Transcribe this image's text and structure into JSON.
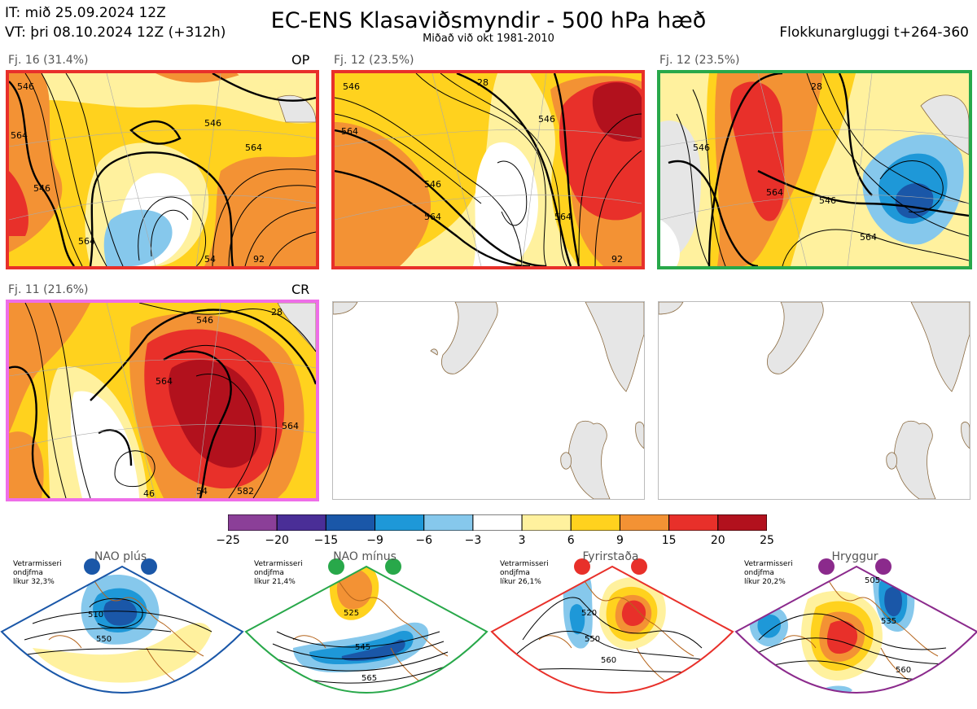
{
  "header": {
    "issue_time": "IT: mið 25.09.2024 12Z",
    "valid_time": "VT: þri 08.10.2024 12Z  (+312h)",
    "title": "EC-ENS Klasaviðsmyndir - 500 hPa hæð",
    "subtitle": "Miðað við okt 1981-2010",
    "window": "Flokkunargluggi t+264-360"
  },
  "panels": [
    {
      "label": "Fj. 16 (31.4%)",
      "tag": "OP",
      "border_color": "#e8302a",
      "contours": [
        "546",
        "564",
        "546",
        "564",
        "546",
        "564",
        "54",
        "92"
      ]
    },
    {
      "label": "Fj. 12 (23.5%)",
      "tag": "",
      "border_color": "#e8302a",
      "contours": [
        "546",
        "564",
        "546",
        "564",
        "546",
        "564",
        "92",
        "28"
      ]
    },
    {
      "label": "Fj. 12 (23.5%)",
      "tag": "",
      "border_color": "#28a84a",
      "contours": [
        "564",
        "546",
        "564",
        "28",
        "546"
      ]
    },
    {
      "label": "Fj. 11 (21.6%)",
      "tag": "CR",
      "border_color": "#ee6ee8",
      "contours": [
        "546",
        "564",
        "564",
        "54",
        "46",
        "582",
        "28"
      ]
    }
  ],
  "colorbar": {
    "colors": [
      "#8b3f98",
      "#4a2e97",
      "#1a57a8",
      "#1e98d8",
      "#86c8ec",
      "#ffffff",
      "#fff19e",
      "#ffd21e",
      "#f39234",
      "#e8302a",
      "#b2111d"
    ],
    "labels": [
      "−25",
      "−20",
      "−15",
      "−9",
      "−6",
      "−3",
      "3",
      "6",
      "9",
      "15",
      "20",
      "25"
    ]
  },
  "regimes": [
    {
      "name": "NAO plús",
      "note": [
        "Vetrarmisseri",
        "ondjfma",
        "líkur 32,3%"
      ],
      "color": "#1a57a8",
      "contours": [
        "510",
        "550"
      ]
    },
    {
      "name": "NAO mínus",
      "note": [
        "Vetrarmisseri",
        "ondjfma",
        "líkur 21,4%"
      ],
      "color": "#28a84a",
      "contours": [
        "525",
        "545",
        "565"
      ]
    },
    {
      "name": "Fyrirstaða",
      "note": [
        "Vetrarmisseri",
        "ondjfma",
        "líkur 26,1%"
      ],
      "color": "#e8302a",
      "contours": [
        "520",
        "550",
        "560"
      ]
    },
    {
      "name": "Hryggur",
      "note": [
        "Vetrarmisseri",
        "ondjfma",
        "líkur 20,2%"
      ],
      "color": "#8b2a8c",
      "contours": [
        "505",
        "535",
        "560"
      ]
    }
  ]
}
